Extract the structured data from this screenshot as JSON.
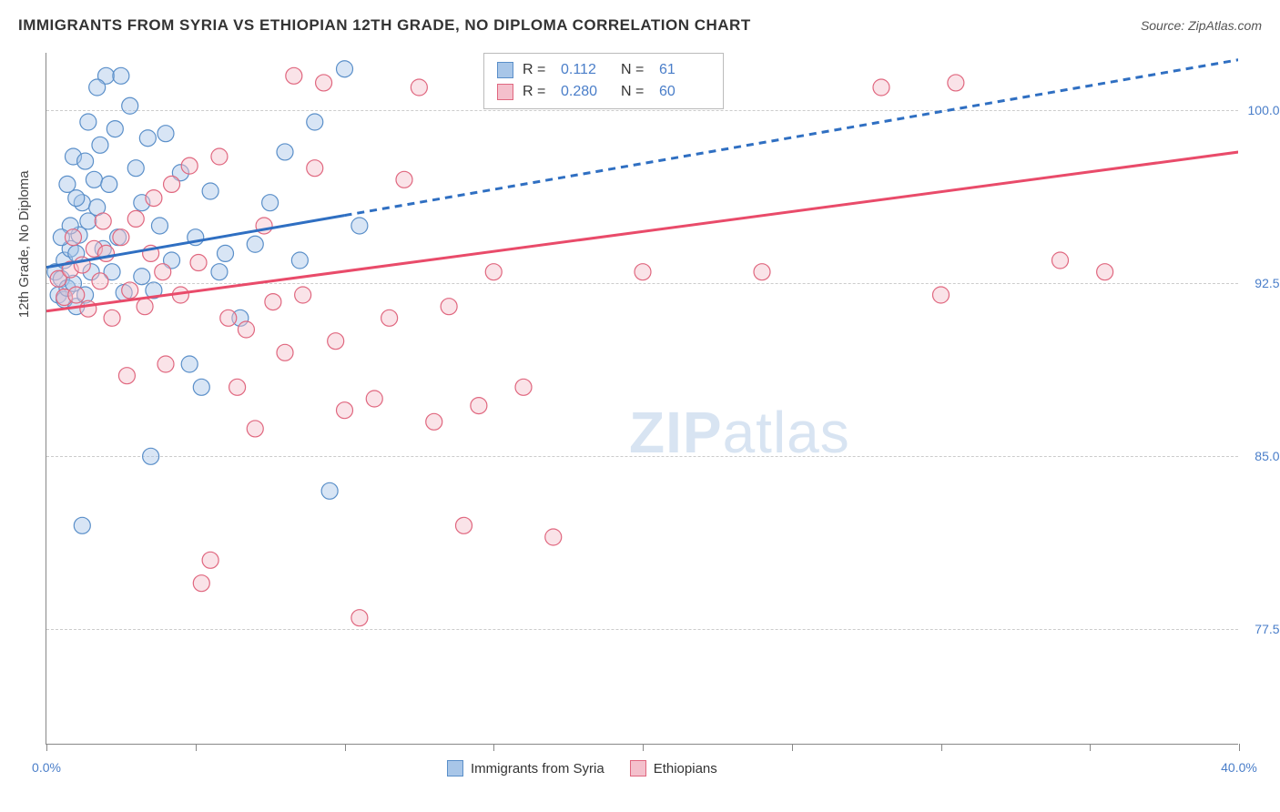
{
  "title": "IMMIGRANTS FROM SYRIA VS ETHIOPIAN 12TH GRADE, NO DIPLOMA CORRELATION CHART",
  "source": "Source: ZipAtlas.com",
  "watermark_zip": "ZIP",
  "watermark_atlas": "atlas",
  "y_axis_title": "12th Grade, No Diploma",
  "chart": {
    "type": "scatter",
    "xlim": [
      0.0,
      40.0
    ],
    "ylim": [
      72.5,
      102.5
    ],
    "x_ticks": [
      0.0,
      40.0
    ],
    "x_tick_labels": [
      "0.0%",
      "40.0%"
    ],
    "x_minor_tick_positions": [
      0,
      5,
      10,
      15,
      20,
      25,
      30,
      35,
      40
    ],
    "y_gridlines": [
      77.5,
      85.0,
      92.5,
      100.0
    ],
    "y_tick_labels": [
      "77.5%",
      "85.0%",
      "92.5%",
      "100.0%"
    ],
    "background_color": "#ffffff",
    "grid_color": "#cccccc",
    "axis_color": "#888888",
    "label_color": "#4a7ec9",
    "marker_radius": 9,
    "marker_opacity": 0.45,
    "series": [
      {
        "name": "Immigrants from Syria",
        "color_fill": "#a8c6e8",
        "color_stroke": "#5a8fc9",
        "r_value": "0.112",
        "n_value": "61",
        "trend": {
          "x1": 0,
          "y1": 93.2,
          "x2": 40,
          "y2": 102.2,
          "solid_until_x": 10,
          "stroke": "#2f6fc2",
          "width": 3
        },
        "points": [
          [
            0.3,
            93.0
          ],
          [
            0.4,
            92.0
          ],
          [
            0.5,
            92.7
          ],
          [
            0.6,
            93.5
          ],
          [
            0.6,
            91.8
          ],
          [
            0.7,
            92.3
          ],
          [
            0.8,
            94.0
          ],
          [
            0.9,
            92.5
          ],
          [
            1.0,
            93.8
          ],
          [
            1.0,
            91.5
          ],
          [
            1.1,
            94.6
          ],
          [
            1.2,
            96.0
          ],
          [
            1.3,
            92.0
          ],
          [
            1.4,
            95.2
          ],
          [
            1.5,
            93.0
          ],
          [
            1.6,
            97.0
          ],
          [
            1.7,
            95.8
          ],
          [
            1.8,
            98.5
          ],
          [
            1.9,
            94.0
          ],
          [
            2.0,
            101.5
          ],
          [
            2.1,
            96.8
          ],
          [
            2.2,
            93.0
          ],
          [
            2.3,
            99.2
          ],
          [
            2.4,
            94.5
          ],
          [
            2.5,
            101.5
          ],
          [
            2.6,
            92.1
          ],
          [
            2.8,
            100.2
          ],
          [
            3.0,
            97.5
          ],
          [
            3.2,
            96.0
          ],
          [
            3.4,
            98.8
          ],
          [
            3.5,
            85.0
          ],
          [
            3.6,
            92.2
          ],
          [
            3.8,
            95.0
          ],
          [
            4.0,
            99.0
          ],
          [
            4.2,
            93.5
          ],
          [
            4.5,
            97.3
          ],
          [
            4.8,
            89.0
          ],
          [
            5.0,
            94.5
          ],
          [
            5.2,
            88.0
          ],
          [
            5.5,
            96.5
          ],
          [
            5.8,
            93.0
          ],
          [
            6.0,
            93.8
          ],
          [
            6.5,
            91.0
          ],
          [
            7.0,
            94.2
          ],
          [
            7.5,
            96.0
          ],
          [
            8.0,
            98.2
          ],
          [
            8.5,
            93.5
          ],
          [
            9.0,
            99.5
          ],
          [
            9.5,
            83.5
          ],
          [
            10.0,
            101.8
          ],
          [
            10.5,
            95.0
          ],
          [
            1.2,
            82.0
          ],
          [
            0.9,
            98.0
          ],
          [
            1.4,
            99.5
          ],
          [
            1.7,
            101.0
          ],
          [
            3.2,
            92.8
          ],
          [
            1.0,
            96.2
          ],
          [
            0.8,
            95.0
          ],
          [
            1.3,
            97.8
          ],
          [
            0.5,
            94.5
          ],
          [
            0.7,
            96.8
          ]
        ]
      },
      {
        "name": "Ethiopians",
        "color_fill": "#f4c0cc",
        "color_stroke": "#e0677f",
        "r_value": "0.280",
        "n_value": "60",
        "trend": {
          "x1": 0,
          "y1": 91.3,
          "x2": 40,
          "y2": 98.2,
          "solid_until_x": 40,
          "stroke": "#e94b6a",
          "width": 3
        },
        "points": [
          [
            0.4,
            92.7
          ],
          [
            0.6,
            91.9
          ],
          [
            0.8,
            93.1
          ],
          [
            1.0,
            92.0
          ],
          [
            1.2,
            93.3
          ],
          [
            1.4,
            91.4
          ],
          [
            1.6,
            94.0
          ],
          [
            1.8,
            92.6
          ],
          [
            2.0,
            93.8
          ],
          [
            2.2,
            91.0
          ],
          [
            2.5,
            94.5
          ],
          [
            2.8,
            92.2
          ],
          [
            3.0,
            95.3
          ],
          [
            3.3,
            91.5
          ],
          [
            3.6,
            96.2
          ],
          [
            3.9,
            93.0
          ],
          [
            4.2,
            96.8
          ],
          [
            4.5,
            92.0
          ],
          [
            4.8,
            97.6
          ],
          [
            5.1,
            93.4
          ],
          [
            5.5,
            80.5
          ],
          [
            5.8,
            98.0
          ],
          [
            6.1,
            91.0
          ],
          [
            6.4,
            88.0
          ],
          [
            6.7,
            90.5
          ],
          [
            7.0,
            86.2
          ],
          [
            7.3,
            95.0
          ],
          [
            7.6,
            91.7
          ],
          [
            8.0,
            89.5
          ],
          [
            8.3,
            101.5
          ],
          [
            8.6,
            92.0
          ],
          [
            9.0,
            97.5
          ],
          [
            9.3,
            101.2
          ],
          [
            9.7,
            90.0
          ],
          [
            10.0,
            87.0
          ],
          [
            10.5,
            78.0
          ],
          [
            11.0,
            87.5
          ],
          [
            11.5,
            91.0
          ],
          [
            12.0,
            97.0
          ],
          [
            12.5,
            101.0
          ],
          [
            13.0,
            86.5
          ],
          [
            13.5,
            91.5
          ],
          [
            14.0,
            82.0
          ],
          [
            14.5,
            87.2
          ],
          [
            15.0,
            93.0
          ],
          [
            16.0,
            88.0
          ],
          [
            17.0,
            81.5
          ],
          [
            20.0,
            93.0
          ],
          [
            24.0,
            93.0
          ],
          [
            30.0,
            92.0
          ],
          [
            28.0,
            101.0
          ],
          [
            30.5,
            101.2
          ],
          [
            34.0,
            93.5
          ],
          [
            35.5,
            93.0
          ],
          [
            5.2,
            79.5
          ],
          [
            4.0,
            89.0
          ],
          [
            3.5,
            93.8
          ],
          [
            2.7,
            88.5
          ],
          [
            1.9,
            95.2
          ],
          [
            0.9,
            94.5
          ]
        ]
      }
    ]
  },
  "legend_top": {
    "r_label": "R =",
    "n_label": "N ="
  },
  "legend_bottom_labels": [
    "Immigrants from Syria",
    "Ethiopians"
  ]
}
